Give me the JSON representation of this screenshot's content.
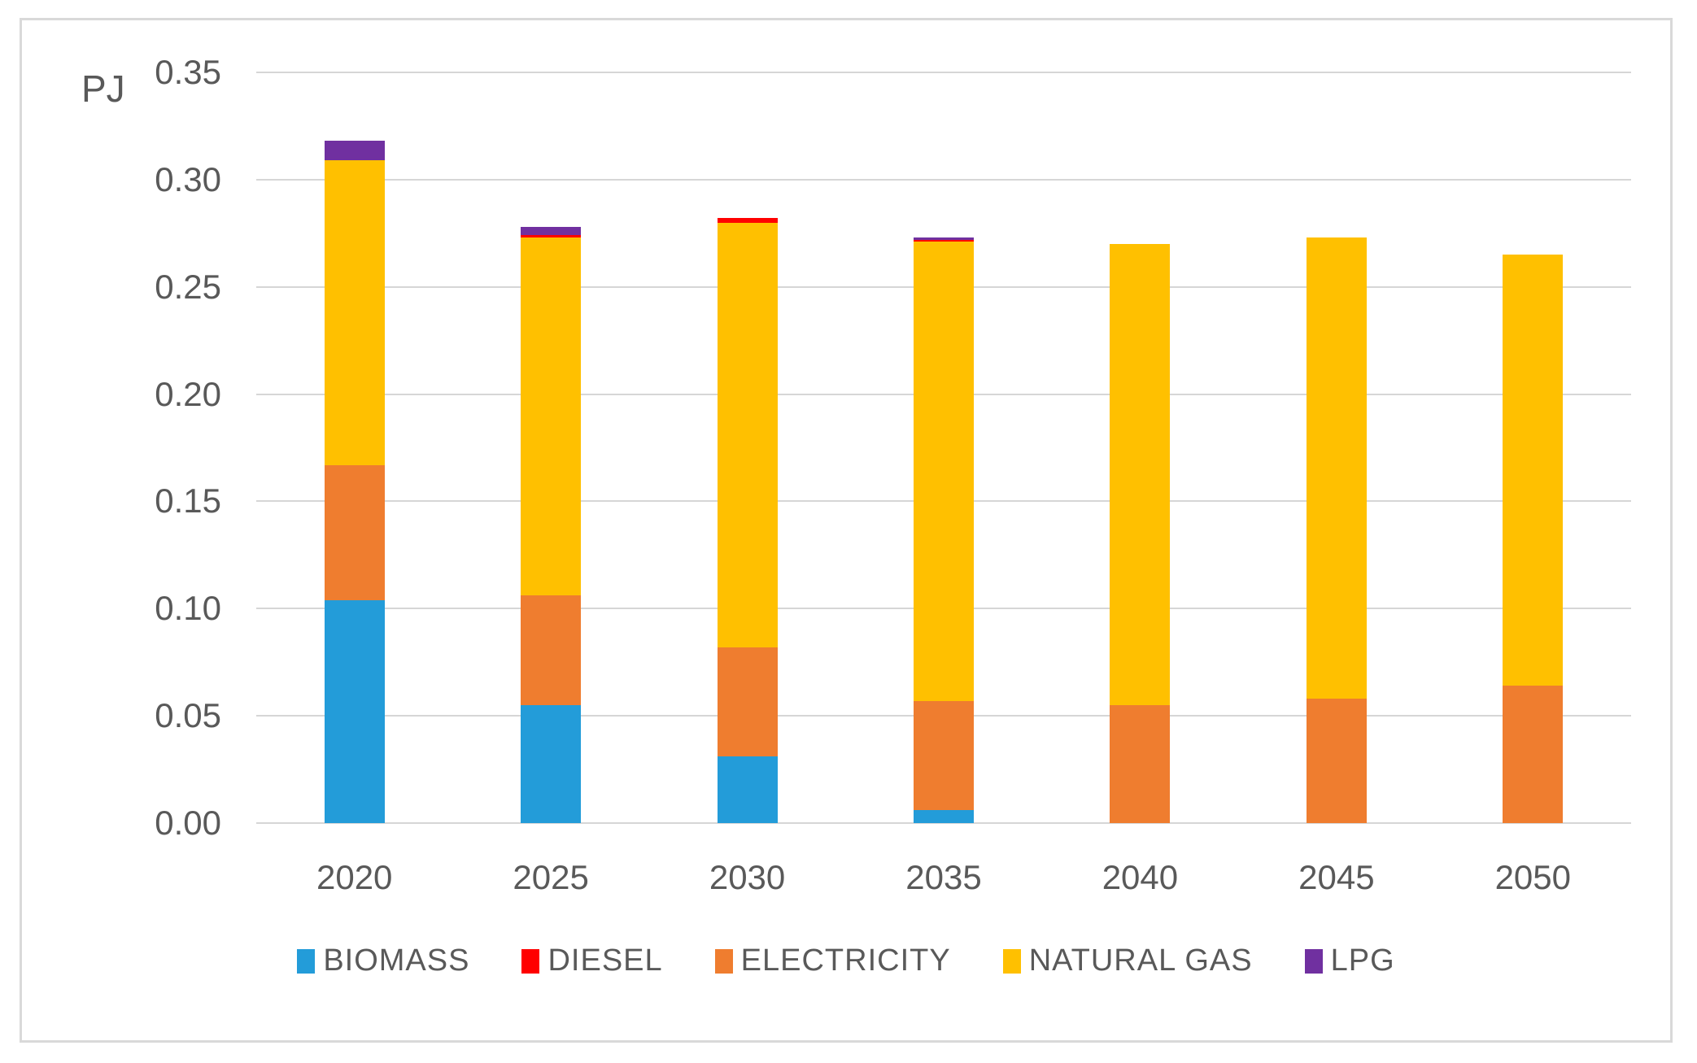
{
  "chart_data": {
    "type": "bar",
    "stacked": true,
    "title": "",
    "xlabel": "",
    "ylabel": "PJ",
    "categories": [
      "2020",
      "2025",
      "2030",
      "2035",
      "2040",
      "2045",
      "2050"
    ],
    "series": [
      {
        "name": "BIOMASS",
        "color": "#239CD9",
        "values": [
          0.104,
          0.055,
          0.031,
          0.006,
          0,
          0,
          0
        ]
      },
      {
        "name": "DIESEL",
        "color": "#FF0000",
        "values": [
          0,
          0.001,
          0.002,
          0.001,
          0,
          0,
          0
        ]
      },
      {
        "name": "ELECTRICITY",
        "color": "#EF7D2F",
        "values": [
          0.063,
          0.051,
          0.051,
          0.051,
          0.055,
          0.058,
          0.064
        ]
      },
      {
        "name": "NATURAL GAS",
        "color": "#FFC000",
        "values": [
          0.142,
          0.167,
          0.198,
          0.214,
          0.215,
          0.215,
          0.201
        ]
      },
      {
        "name": "LPG",
        "color": "#7030A0",
        "values": [
          0.009,
          0.004,
          0,
          0.001,
          0,
          0,
          0
        ]
      }
    ],
    "stack_order": [
      "BIOMASS",
      "ELECTRICITY",
      "NATURAL GAS",
      "DIESEL",
      "LPG"
    ],
    "legend_order": [
      "BIOMASS",
      "DIESEL",
      "ELECTRICITY",
      "NATURAL GAS",
      "LPG"
    ],
    "legend_position": "bottom",
    "ylim": [
      0,
      0.35
    ],
    "yticks": [
      "0.35",
      "0.30",
      "0.25",
      "0.20",
      "0.15",
      "0.10",
      "0.05",
      "0.00"
    ],
    "ytick_values": [
      0.35,
      0.3,
      0.25,
      0.2,
      0.15,
      0.1,
      0.05,
      0.0
    ],
    "grid": "horizontal"
  },
  "styles": {
    "background": "#FFFFFF",
    "frame_color": "#D9D9D9",
    "gridline_color": "#D6D6D6",
    "text_color": "#595959"
  }
}
